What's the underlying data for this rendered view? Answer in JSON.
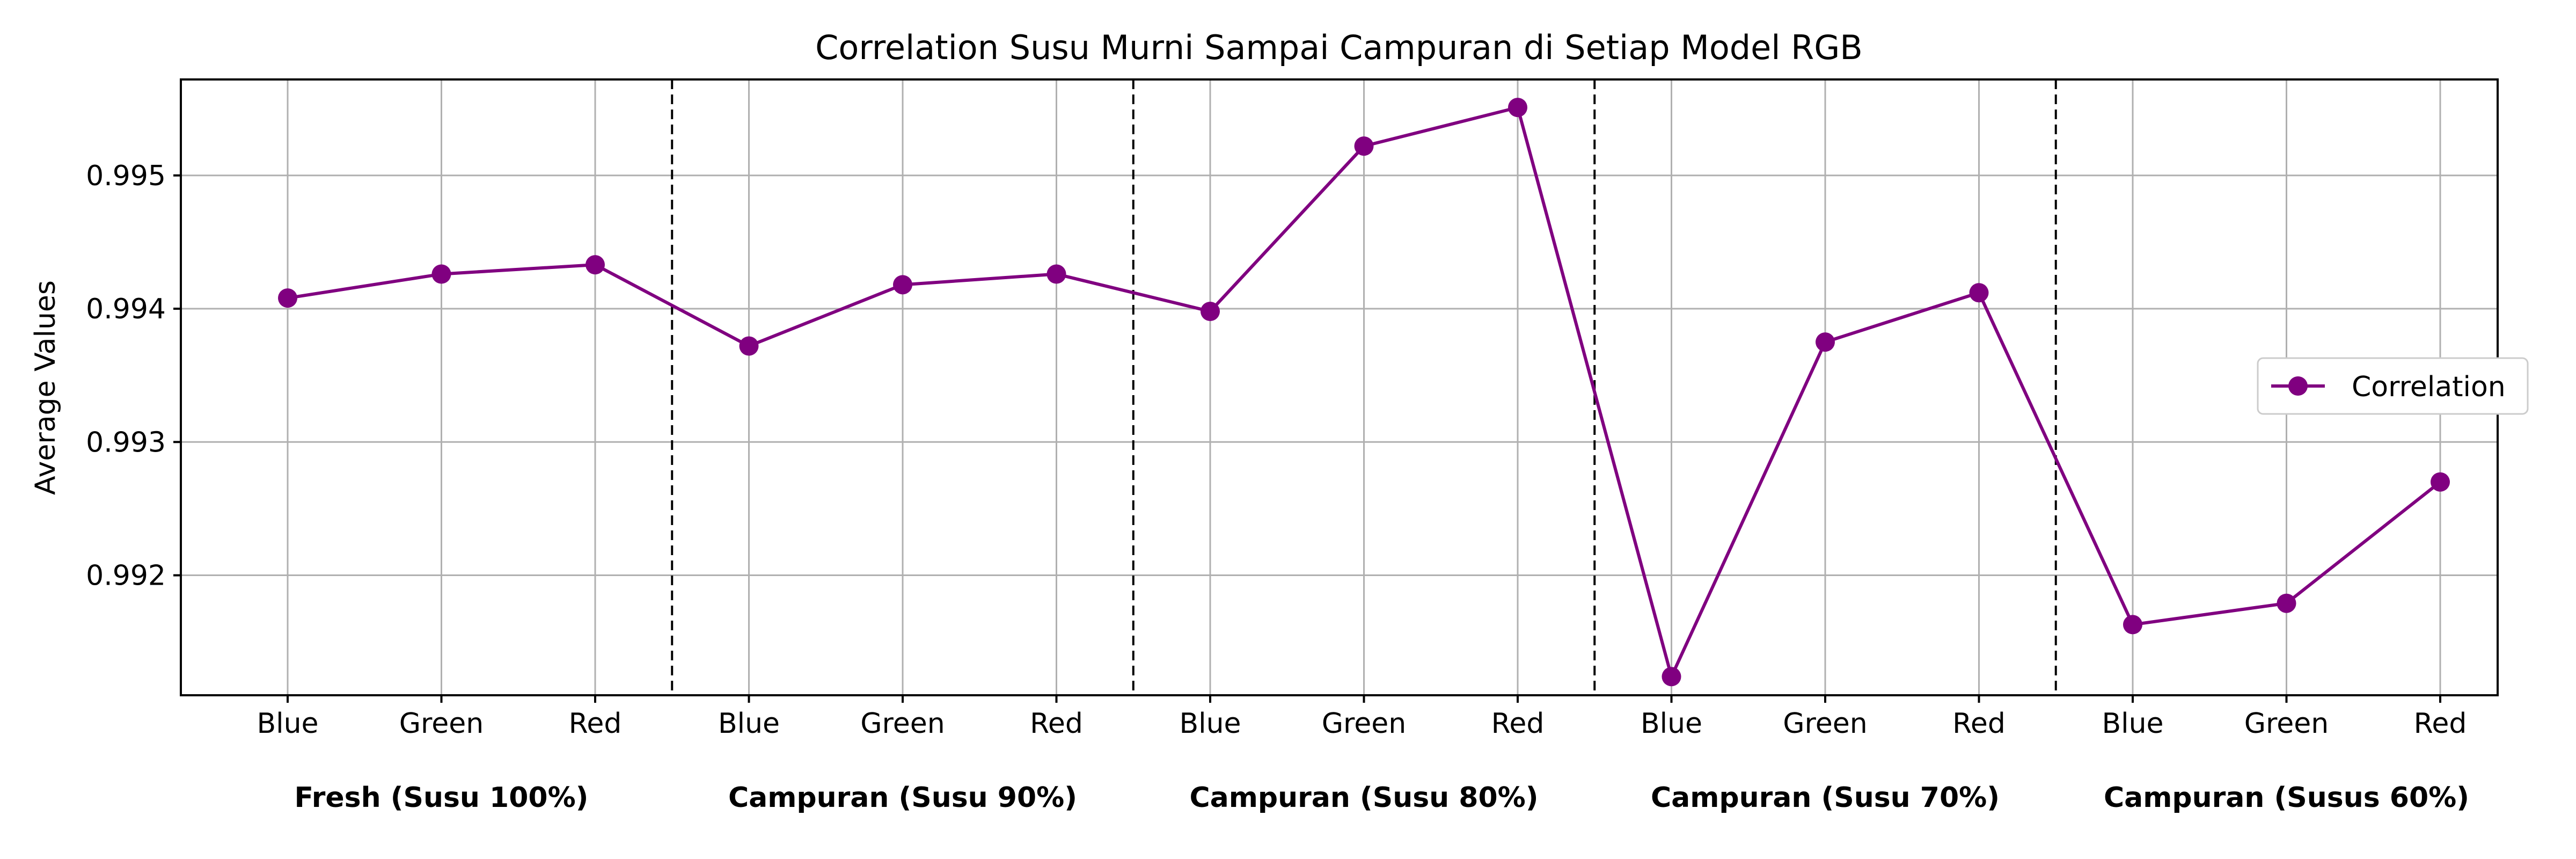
{
  "chart_data": {
    "type": "line",
    "title": "Correlation Susu Murni Sampai Campuran di Setiap Model RGB",
    "xlabel": "",
    "ylabel": "Average Values",
    "categories": [
      "Blue",
      "Green",
      "Red",
      "Blue",
      "Green",
      "Red",
      "Blue",
      "Green",
      "Red",
      "Blue",
      "Green",
      "Red",
      "Blue",
      "Green",
      "Red"
    ],
    "groups": [
      {
        "label": "Fresh (Susu 100%)",
        "count": 3
      },
      {
        "label": "Campuran (Susu 90%)",
        "count": 3
      },
      {
        "label": "Campuran (Susu 80%)",
        "count": 3
      },
      {
        "label": "Campuran (Susu 70%)",
        "count": 3
      },
      {
        "label": "Campuran (Susus 60%)",
        "count": 3
      }
    ],
    "series": [
      {
        "name": "Correlation",
        "color": "#800080",
        "values": [
          0.99408,
          0.99426,
          0.99433,
          0.99372,
          0.99418,
          0.99426,
          0.99398,
          0.99522,
          0.99551,
          0.99124,
          0.99375,
          0.99412,
          0.99163,
          0.99179,
          0.9927
        ]
      }
    ],
    "ylim": [
      0.9911,
      0.99572
    ],
    "yticks": [
      0.992,
      0.993,
      0.994,
      0.995
    ],
    "ytick_labels": [
      "0.992",
      "0.993",
      "0.994",
      "0.995"
    ],
    "grid": true,
    "group_separators": "dashed",
    "legend": "center-right"
  }
}
